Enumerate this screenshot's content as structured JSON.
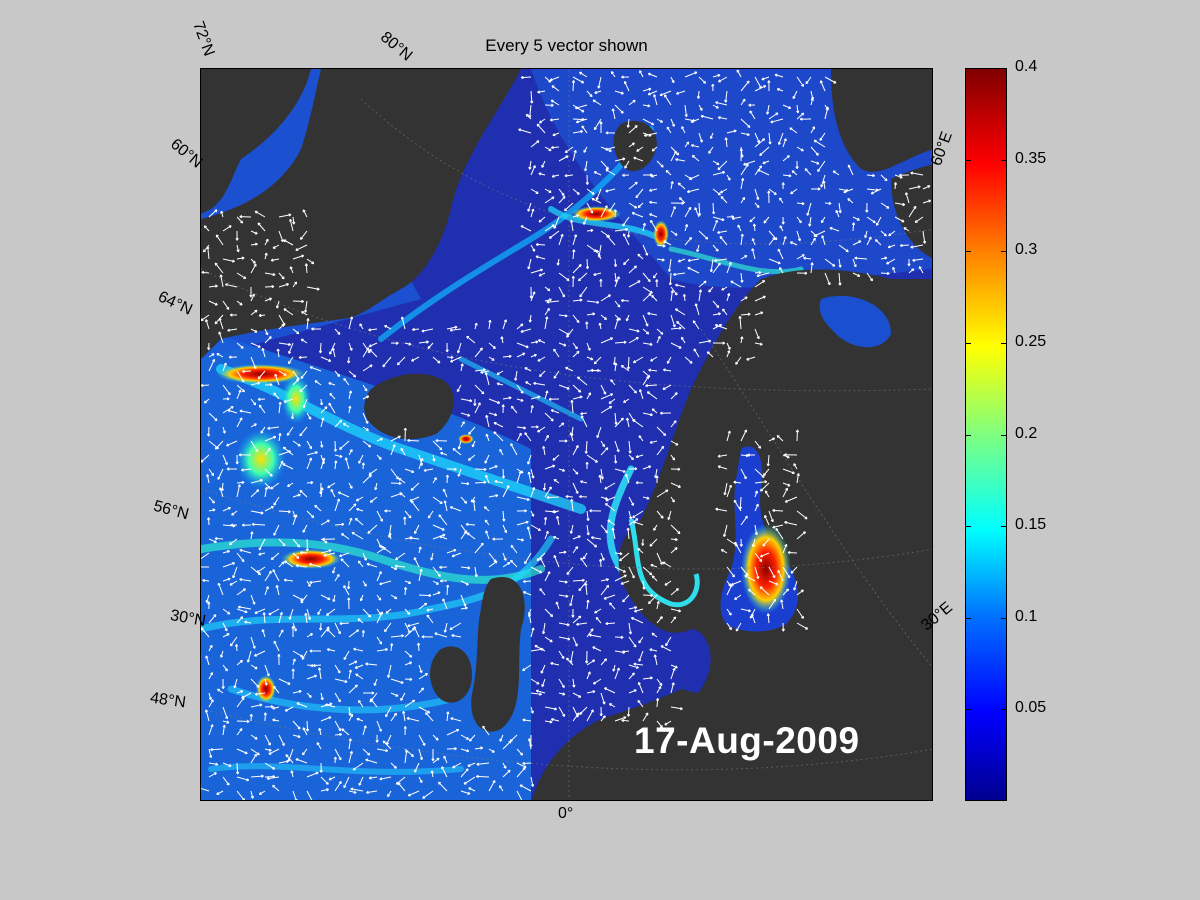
{
  "figure": {
    "title": "Every 5 vector shown",
    "date": "17-Aug-2009"
  },
  "map_labels": {
    "lat_72": "72°N",
    "lat_80": "80°N",
    "lat_60_upper": "60°N",
    "lat_64": "64°N",
    "lat_56": "56°N",
    "lat_30": "30°N",
    "lat_48": "48°N",
    "lon_0": "0°",
    "lon_30e": "30°E",
    "lon_60e": "60°E"
  },
  "colorbar": {
    "ticks": [
      "0.4",
      "0.35",
      "0.3",
      "0.25",
      "0.2",
      "0.15",
      "0.1",
      "0.05"
    ],
    "min": 0,
    "max": 0.4,
    "colormap": "jet"
  },
  "colors": {
    "background": "#c8c8c8",
    "land": "#333333",
    "vector": "#ffffff"
  }
}
